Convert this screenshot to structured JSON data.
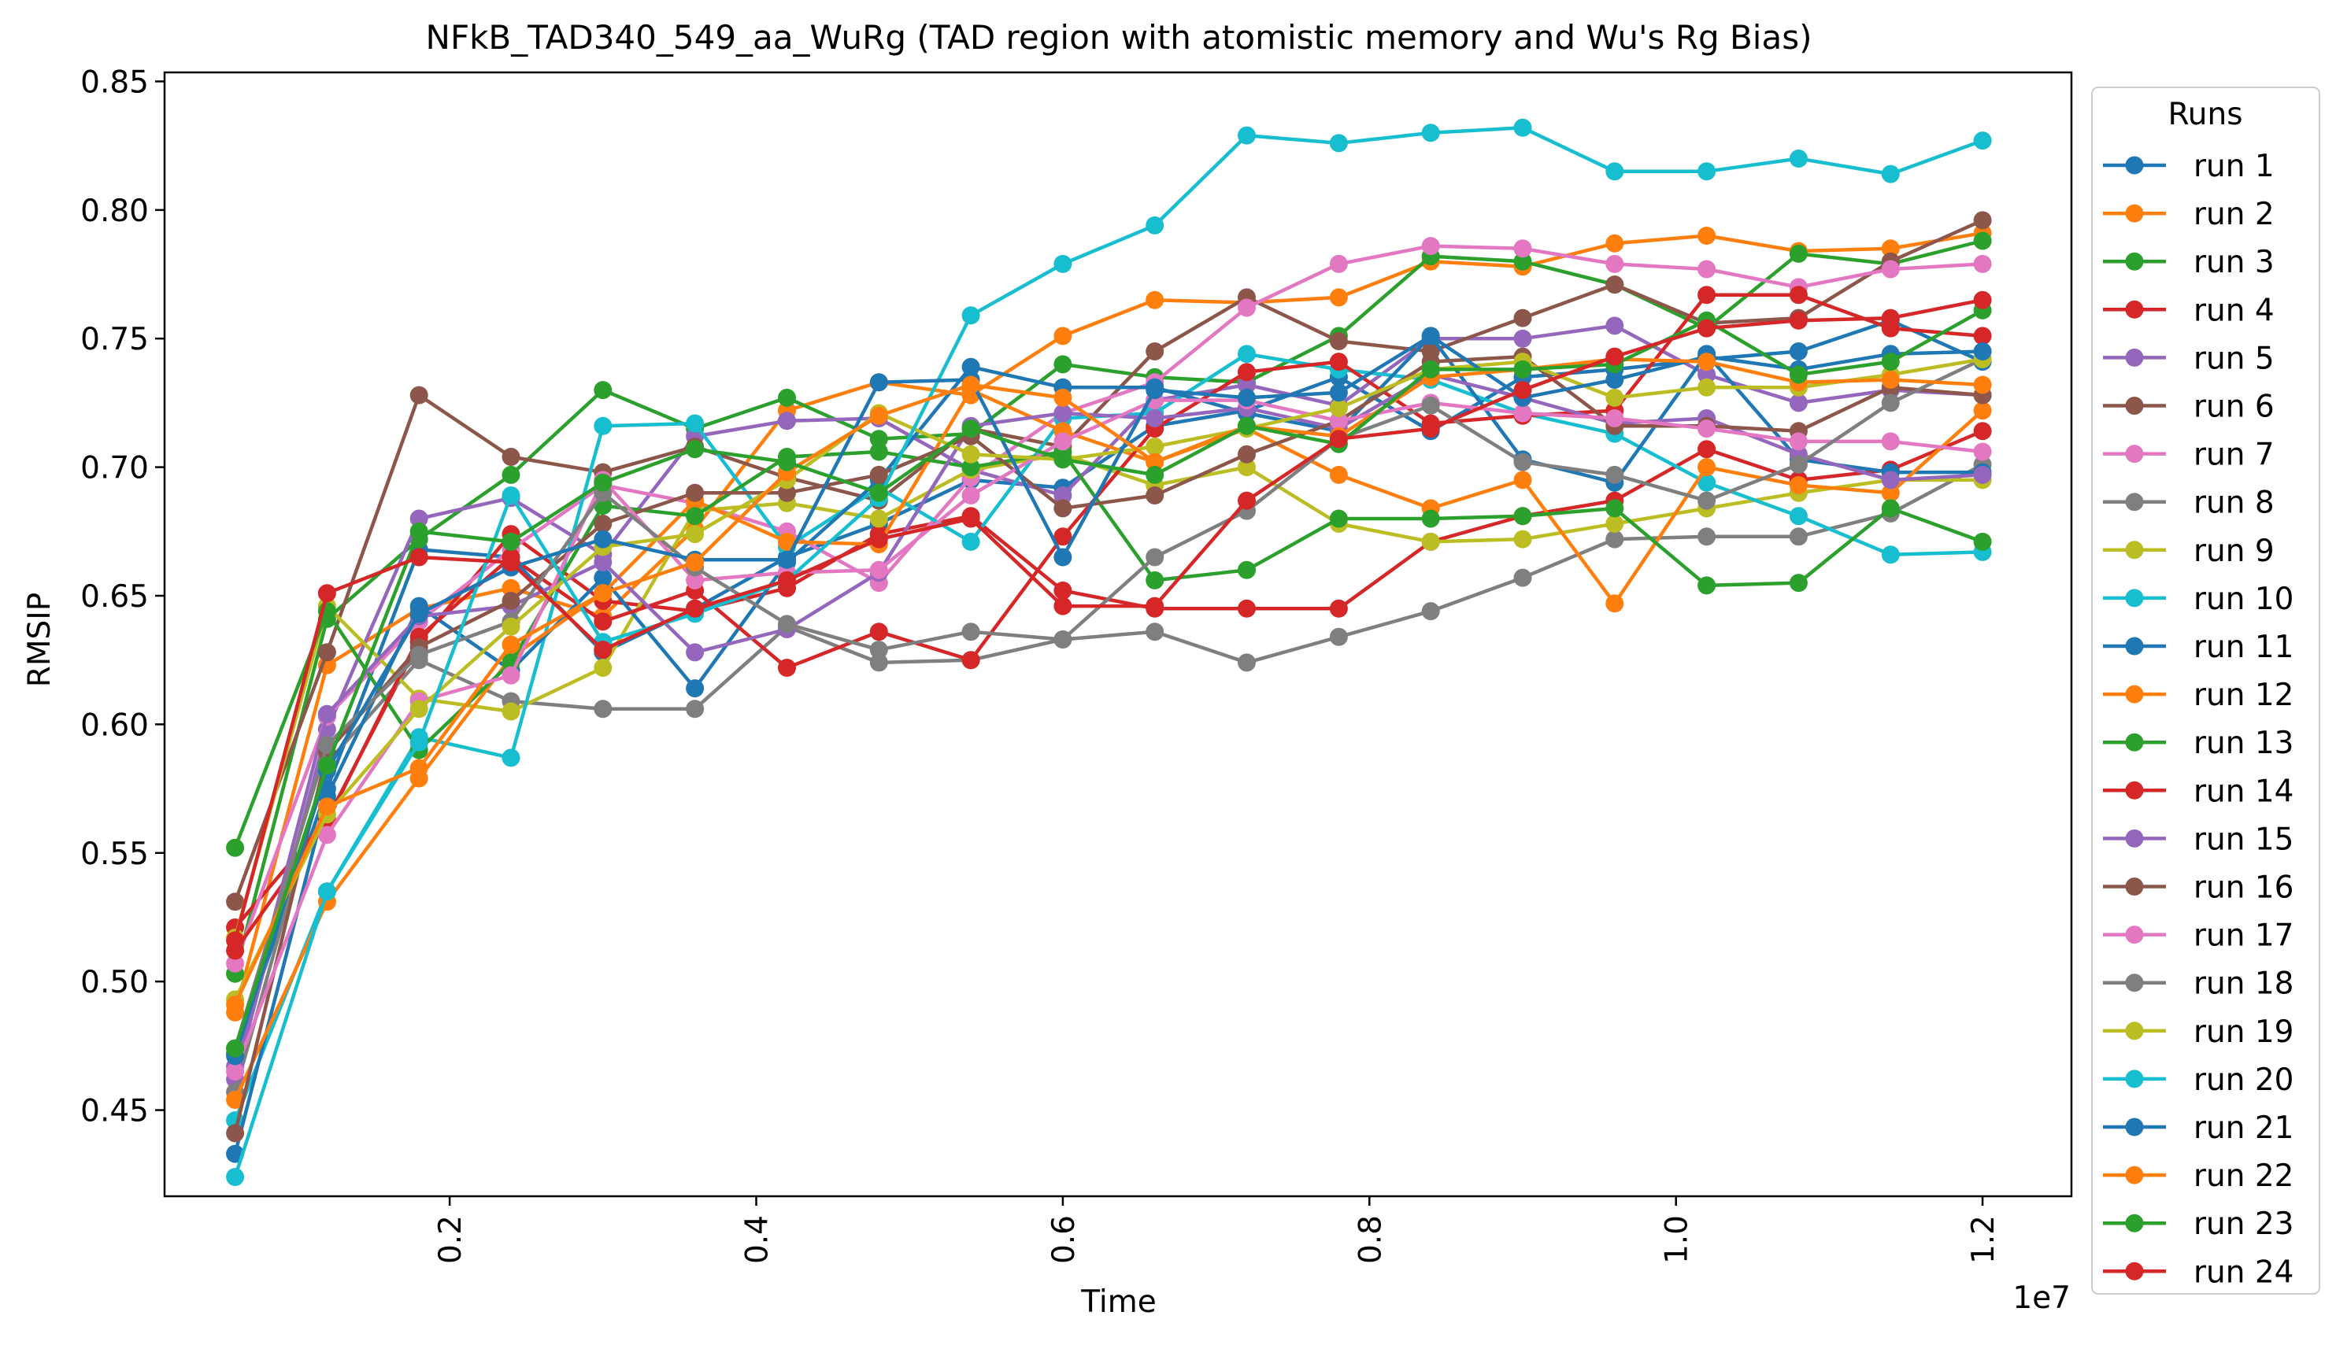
{
  "chart_data": {
    "type": "line",
    "title": "NFkB_TAD340_549_aa_WuRg (TAD region with atomistic memory and Wu's Rg Bias)",
    "xlabel": "Time",
    "ylabel": "RMSIP",
    "x_offset_label": "1e7",
    "legend_title": "Runs",
    "legend_position": "outside right",
    "grid": false,
    "xlim": [
      140000,
      12580000
    ],
    "ylim": [
      0.4165,
      0.8535
    ],
    "x_ticks": [
      2000000,
      4000000,
      6000000,
      8000000,
      10000000,
      12000000
    ],
    "x_tick_labels": [
      "0.2",
      "0.4",
      "0.6",
      "0.8",
      "1.0",
      "1.2"
    ],
    "y_ticks": [
      0.45,
      0.5,
      0.55,
      0.6,
      0.65,
      0.7,
      0.75,
      0.8,
      0.85
    ],
    "y_tick_labels": [
      "0.45",
      "0.50",
      "0.55",
      "0.60",
      "0.65",
      "0.70",
      "0.75",
      "0.80",
      "0.85"
    ],
    "x": [
      600000,
      1200000,
      1800000,
      2400000,
      3000000,
      3600000,
      4200000,
      4800000,
      5400000,
      6000000,
      6600000,
      7200000,
      7800000,
      8400000,
      9000000,
      9600000,
      10200000,
      10800000,
      11400000,
      12000000
    ],
    "series": [
      {
        "name": "run 1",
        "color": "#1f77b4",
        "values": [
          0.472,
          0.575,
          0.668,
          0.665,
          0.628,
          0.645,
          0.665,
          0.678,
          0.695,
          0.692,
          0.716,
          0.722,
          0.735,
          0.714,
          0.735,
          0.738,
          0.742,
          0.745,
          0.757,
          0.741
        ]
      },
      {
        "name": "run 2",
        "color": "#ff7f0e",
        "values": [
          0.488,
          0.623,
          0.645,
          0.653,
          0.642,
          0.676,
          0.722,
          0.733,
          0.728,
          0.751,
          0.765,
          0.764,
          0.766,
          0.78,
          0.778,
          0.787,
          0.79,
          0.784,
          0.785,
          0.791
        ]
      },
      {
        "name": "run 3",
        "color": "#2ca02c",
        "values": [
          0.503,
          0.641,
          0.672,
          0.697,
          0.73,
          0.715,
          0.727,
          0.711,
          0.713,
          0.74,
          0.735,
          0.733,
          0.751,
          0.782,
          0.78,
          0.771,
          0.754,
          0.783,
          0.779,
          0.788
        ]
      },
      {
        "name": "run 4",
        "color": "#d62728",
        "values": [
          0.521,
          0.563,
          0.632,
          0.674,
          0.648,
          0.644,
          0.653,
          0.674,
          0.681,
          0.652,
          0.645,
          0.645,
          0.645,
          0.671,
          0.681,
          0.687,
          0.707,
          0.695,
          0.699,
          0.714
        ]
      },
      {
        "name": "run 5",
        "color": "#9467bd",
        "values": [
          0.462,
          0.598,
          0.68,
          0.688,
          0.666,
          0.712,
          0.718,
          0.719,
          0.699,
          0.689,
          0.726,
          0.732,
          0.724,
          0.75,
          0.75,
          0.755,
          0.736,
          0.725,
          0.73,
          0.728
        ]
      },
      {
        "name": "run 6",
        "color": "#8c564b",
        "values": [
          0.531,
          0.628,
          0.728,
          0.704,
          0.698,
          0.708,
          0.696,
          0.687,
          0.715,
          0.708,
          0.745,
          0.766,
          0.749,
          0.745,
          0.758,
          0.771,
          0.756,
          0.758,
          0.78,
          0.796
        ]
      },
      {
        "name": "run 7",
        "color": "#e377c2",
        "values": [
          0.507,
          0.603,
          0.64,
          0.668,
          0.693,
          0.686,
          0.675,
          0.655,
          0.696,
          0.721,
          0.733,
          0.762,
          0.779,
          0.786,
          0.785,
          0.779,
          0.777,
          0.77,
          0.777,
          0.779
        ]
      },
      {
        "name": "run 8",
        "color": "#7f7f7f",
        "values": [
          0.457,
          0.585,
          0.625,
          0.609,
          0.606,
          0.606,
          0.638,
          0.624,
          0.625,
          0.633,
          0.636,
          0.624,
          0.634,
          0.644,
          0.657,
          0.672,
          0.673,
          0.673,
          0.682,
          0.701
        ]
      },
      {
        "name": "run 9",
        "color": "#bcbd22",
        "values": [
          0.517,
          0.646,
          0.61,
          0.605,
          0.622,
          0.683,
          0.686,
          0.68,
          0.699,
          0.705,
          0.693,
          0.7,
          0.678,
          0.671,
          0.672,
          0.678,
          0.684,
          0.69,
          0.695,
          0.695
        ]
      },
      {
        "name": "run 10",
        "color": "#17becf",
        "values": [
          0.446,
          0.535,
          0.595,
          0.587,
          0.716,
          0.717,
          0.669,
          0.692,
          0.671,
          0.719,
          0.721,
          0.744,
          0.738,
          0.734,
          0.721,
          0.713,
          0.694,
          0.681,
          0.666,
          0.667
        ]
      },
      {
        "name": "run 11",
        "color": "#1f77b4",
        "values": [
          0.433,
          0.572,
          0.646,
          0.621,
          0.657,
          0.614,
          0.663,
          0.695,
          0.739,
          0.731,
          0.731,
          0.721,
          0.714,
          0.751,
          0.703,
          0.694,
          0.744,
          0.703,
          0.698,
          0.698
        ]
      },
      {
        "name": "run 12",
        "color": "#ff7f0e",
        "values": [
          0.454,
          0.531,
          0.579,
          0.626,
          0.651,
          0.687,
          0.671,
          0.67,
          0.73,
          0.714,
          0.702,
          0.715,
          0.697,
          0.684,
          0.695,
          0.647,
          0.7,
          0.693,
          0.69,
          0.722
        ]
      },
      {
        "name": "run 13",
        "color": "#2ca02c",
        "values": [
          0.552,
          0.644,
          0.59,
          0.624,
          0.685,
          0.681,
          0.704,
          0.706,
          0.7,
          0.706,
          0.656,
          0.66,
          0.68,
          0.68,
          0.681,
          0.684,
          0.654,
          0.655,
          0.684,
          0.671
        ]
      },
      {
        "name": "run 14",
        "color": "#d62728",
        "values": [
          0.512,
          0.562,
          0.634,
          0.665,
          0.64,
          0.652,
          0.622,
          0.636,
          0.625,
          0.673,
          0.715,
          0.737,
          0.741,
          0.717,
          0.72,
          0.722,
          0.767,
          0.767,
          0.754,
          0.751
        ]
      },
      {
        "name": "run 15",
        "color": "#9467bd",
        "values": [
          0.467,
          0.604,
          0.642,
          0.646,
          0.663,
          0.628,
          0.637,
          0.659,
          0.716,
          0.721,
          0.719,
          0.723,
          0.715,
          0.736,
          0.727,
          0.717,
          0.719,
          0.705,
          0.695,
          0.697
        ]
      },
      {
        "name": "run 16",
        "color": "#8c564b",
        "values": [
          0.441,
          0.589,
          0.63,
          0.648,
          0.678,
          0.69,
          0.69,
          0.697,
          0.712,
          0.684,
          0.689,
          0.705,
          0.718,
          0.741,
          0.743,
          0.716,
          0.716,
          0.714,
          0.731,
          0.728
        ]
      },
      {
        "name": "run 17",
        "color": "#e377c2",
        "values": [
          0.465,
          0.557,
          0.609,
          0.619,
          0.695,
          0.656,
          0.659,
          0.66,
          0.689,
          0.71,
          0.726,
          0.726,
          0.718,
          0.725,
          0.721,
          0.719,
          0.715,
          0.71,
          0.71,
          0.706
        ]
      },
      {
        "name": "run 18",
        "color": "#7f7f7f",
        "values": [
          0.474,
          0.592,
          0.627,
          0.64,
          0.69,
          0.661,
          0.639,
          0.629,
          0.636,
          0.633,
          0.665,
          0.683,
          0.711,
          0.724,
          0.702,
          0.697,
          0.687,
          0.701,
          0.725,
          0.742
        ]
      },
      {
        "name": "run 19",
        "color": "#bcbd22",
        "values": [
          0.493,
          0.565,
          0.606,
          0.638,
          0.669,
          0.674,
          0.695,
          0.721,
          0.705,
          0.703,
          0.708,
          0.715,
          0.723,
          0.738,
          0.741,
          0.727,
          0.731,
          0.731,
          0.736,
          0.742
        ]
      },
      {
        "name": "run 20",
        "color": "#17becf",
        "values": [
          0.424,
          0.535,
          0.593,
          0.689,
          0.632,
          0.643,
          0.656,
          0.688,
          0.759,
          0.779,
          0.794,
          0.829,
          0.826,
          0.83,
          0.832,
          0.815,
          0.815,
          0.82,
          0.814,
          0.827
        ]
      },
      {
        "name": "run 21",
        "color": "#1f77b4",
        "values": [
          0.471,
          0.582,
          0.643,
          0.661,
          0.672,
          0.664,
          0.664,
          0.733,
          0.734,
          0.665,
          0.73,
          0.727,
          0.729,
          0.751,
          0.727,
          0.734,
          0.743,
          0.738,
          0.744,
          0.745
        ]
      },
      {
        "name": "run 22",
        "color": "#ff7f0e",
        "values": [
          0.491,
          0.568,
          0.583,
          0.631,
          0.651,
          0.663,
          0.698,
          0.72,
          0.732,
          0.727,
          0.702,
          0.716,
          0.712,
          0.735,
          0.738,
          0.742,
          0.741,
          0.733,
          0.734,
          0.732
        ]
      },
      {
        "name": "run 23",
        "color": "#2ca02c",
        "values": [
          0.474,
          0.584,
          0.675,
          0.671,
          0.694,
          0.707,
          0.702,
          0.69,
          0.715,
          0.703,
          0.697,
          0.716,
          0.709,
          0.738,
          0.738,
          0.74,
          0.757,
          0.736,
          0.741,
          0.761
        ]
      },
      {
        "name": "run 24",
        "color": "#d62728",
        "values": [
          0.516,
          0.651,
          0.665,
          0.663,
          0.629,
          0.645,
          0.656,
          0.672,
          0.68,
          0.646,
          0.646,
          0.687,
          0.711,
          0.715,
          0.73,
          0.743,
          0.754,
          0.757,
          0.758,
          0.765
        ]
      }
    ]
  }
}
